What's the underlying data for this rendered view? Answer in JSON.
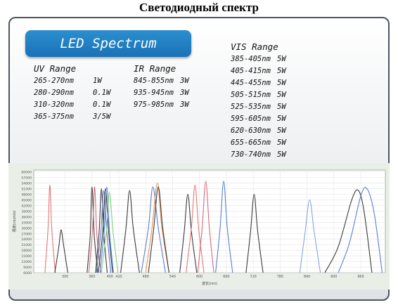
{
  "page_title": "Светодиодный спектр",
  "banner": "LED Spectrum",
  "uv": {
    "title": "UV Range",
    "rows": [
      {
        "range": "265-270nm",
        "power": "1W"
      },
      {
        "range": "280-290nm",
        "power": "0.1W"
      },
      {
        "range": "310-320nm",
        "power": "0.1W"
      },
      {
        "range": "365-375nm",
        "power": "3/5W"
      }
    ]
  },
  "ir": {
    "title": "IR Range",
    "rows": [
      {
        "range": "845-855nm",
        "power": "3W"
      },
      {
        "range": "935-945nm",
        "power": "3W"
      },
      {
        "range": "975-985nm",
        "power": "3W"
      }
    ]
  },
  "vis": {
    "title": "VIS Range",
    "rows": [
      {
        "range": "385-405nm",
        "power": "5W"
      },
      {
        "range": "405-415nm",
        "power": "5W"
      },
      {
        "range": "445-455nm",
        "power": "5W"
      },
      {
        "range": "505-515nm",
        "power": "5W"
      },
      {
        "range": "525-535nm",
        "power": "5W"
      },
      {
        "range": "595-605nm",
        "power": "5W"
      },
      {
        "range": "620-630nm",
        "power": "5W"
      },
      {
        "range": "655-665nm",
        "power": "5W"
      },
      {
        "range": "730-740nm",
        "power": "5W"
      }
    ]
  },
  "chart_data": {
    "type": "line",
    "xlabel": "波长(nm)",
    "ylabel": "强度(counts)",
    "xlim": [
      230,
      1015
    ],
    "ylim": [
      6000,
      61000
    ],
    "xticks": [
      "300",
      "360",
      "400",
      "420",
      "480",
      "540",
      "600",
      "660",
      "720",
      "780",
      "840",
      "900",
      "960"
    ],
    "xtick_values": [
      300,
      360,
      400,
      420,
      480,
      540,
      600,
      660,
      720,
      780,
      840,
      900,
      960
    ],
    "yticks": [
      6000,
      9000,
      12000,
      15000,
      18000,
      21000,
      24000,
      27000,
      30000,
      33000,
      36000,
      39000,
      42000,
      45000,
      48000,
      51000,
      54000,
      57000,
      60000
    ],
    "grid": true,
    "series": [
      {
        "color": "#e47878",
        "points": [
          [
            255,
            6000
          ],
          [
            262,
            30000
          ],
          [
            266,
            53000
          ],
          [
            270,
            30000
          ],
          [
            278,
            6000
          ]
        ]
      },
      {
        "color": "#3a3a3a",
        "points": [
          [
            277,
            6000
          ],
          [
            286,
            20000
          ],
          [
            291,
            29000
          ],
          [
            297,
            20000
          ],
          [
            306,
            6000
          ]
        ]
      },
      {
        "color": "#3a3a3a",
        "points": [
          [
            349,
            6000
          ],
          [
            356,
            26000
          ],
          [
            360,
            52000
          ],
          [
            365,
            26000
          ],
          [
            373,
            6000
          ]
        ]
      },
      {
        "color": "#d86a80",
        "points": [
          [
            353,
            6000
          ],
          [
            361,
            28000
          ],
          [
            366,
            52000
          ],
          [
            371,
            26000
          ],
          [
            380,
            6000
          ]
        ]
      },
      {
        "color": "#3a3a3a",
        "points": [
          [
            368,
            6000
          ],
          [
            376,
            28000
          ],
          [
            381,
            51000
          ],
          [
            386,
            28000
          ],
          [
            394,
            6000
          ]
        ]
      },
      {
        "color": "#5b7fd1",
        "points": [
          [
            370,
            6000
          ],
          [
            380,
            28000
          ],
          [
            386,
            50000
          ],
          [
            393,
            28000
          ],
          [
            402,
            6000
          ]
        ]
      },
      {
        "color": "#3a3a3a",
        "points": [
          [
            374,
            6000
          ],
          [
            384,
            28000
          ],
          [
            390,
            51000
          ],
          [
            397,
            28000
          ],
          [
            406,
            6000
          ]
        ]
      },
      {
        "color": "#5b7fd1",
        "points": [
          [
            378,
            6000
          ],
          [
            387,
            28000
          ],
          [
            393,
            52000
          ],
          [
            399,
            28000
          ],
          [
            408,
            6000
          ]
        ]
      },
      {
        "color": "#7fd17f",
        "points": [
          [
            381,
            6000
          ],
          [
            392,
            28000
          ],
          [
            399,
            49000
          ],
          [
            407,
            28000
          ],
          [
            418,
            6000
          ]
        ]
      },
      {
        "color": "#3a3a3a",
        "points": [
          [
            424,
            6000
          ],
          [
            436,
            30000
          ],
          [
            444,
            50000
          ],
          [
            452,
            30000
          ],
          [
            466,
            6000
          ]
        ]
      },
      {
        "color": "#5b7fd1",
        "points": [
          [
            470,
            6000
          ],
          [
            486,
            30000
          ],
          [
            496,
            52000
          ],
          [
            508,
            30000
          ],
          [
            524,
            6000
          ]
        ]
      },
      {
        "color": "#e0955a",
        "points": [
          [
            480,
            6000
          ],
          [
            494,
            30000
          ],
          [
            506,
            54000
          ],
          [
            516,
            30000
          ],
          [
            532,
            6000
          ]
        ]
      },
      {
        "color": "#3a3a3a",
        "points": [
          [
            486,
            6000
          ],
          [
            498,
            30000
          ],
          [
            508,
            52000
          ],
          [
            518,
            30000
          ],
          [
            532,
            6000
          ]
        ]
      },
      {
        "color": "#3a3a3a",
        "points": [
          [
            556,
            6000
          ],
          [
            566,
            28000
          ],
          [
            574,
            48000
          ],
          [
            582,
            28000
          ],
          [
            594,
            6000
          ]
        ]
      },
      {
        "color": "#e47878",
        "points": [
          [
            570,
            6000
          ],
          [
            582,
            30000
          ],
          [
            590,
            53000
          ],
          [
            598,
            30000
          ],
          [
            610,
            6000
          ]
        ]
      },
      {
        "color": "#d86a80",
        "points": [
          [
            596,
            6000
          ],
          [
            606,
            30000
          ],
          [
            614,
            55000
          ],
          [
            622,
            30000
          ],
          [
            632,
            6000
          ]
        ]
      },
      {
        "color": "#5b7fd1",
        "points": [
          [
            636,
            6000
          ],
          [
            646,
            30000
          ],
          [
            654,
            55000
          ],
          [
            662,
            30000
          ],
          [
            674,
            6000
          ]
        ]
      },
      {
        "color": "#3a3a3a",
        "points": [
          [
            704,
            6000
          ],
          [
            714,
            28000
          ],
          [
            722,
            48000
          ],
          [
            730,
            28000
          ],
          [
            742,
            6000
          ]
        ]
      },
      {
        "color": "#8aa2e6",
        "points": [
          [
            824,
            6000
          ],
          [
            836,
            28000
          ],
          [
            846,
            45000
          ],
          [
            856,
            28000
          ],
          [
            870,
            6000
          ]
        ]
      },
      {
        "color": "#3a3a3a",
        "points": [
          [
            880,
            6000
          ],
          [
            910,
            20000
          ],
          [
            940,
            45000
          ],
          [
            955,
            50000
          ],
          [
            968,
            38000
          ],
          [
            985,
            6000
          ]
        ]
      },
      {
        "color": "#5b7fd1",
        "points": [
          [
            910,
            6000
          ],
          [
            935,
            22000
          ],
          [
            960,
            47000
          ],
          [
            974,
            51000
          ],
          [
            990,
            38000
          ],
          [
            1008,
            6000
          ]
        ]
      }
    ]
  }
}
